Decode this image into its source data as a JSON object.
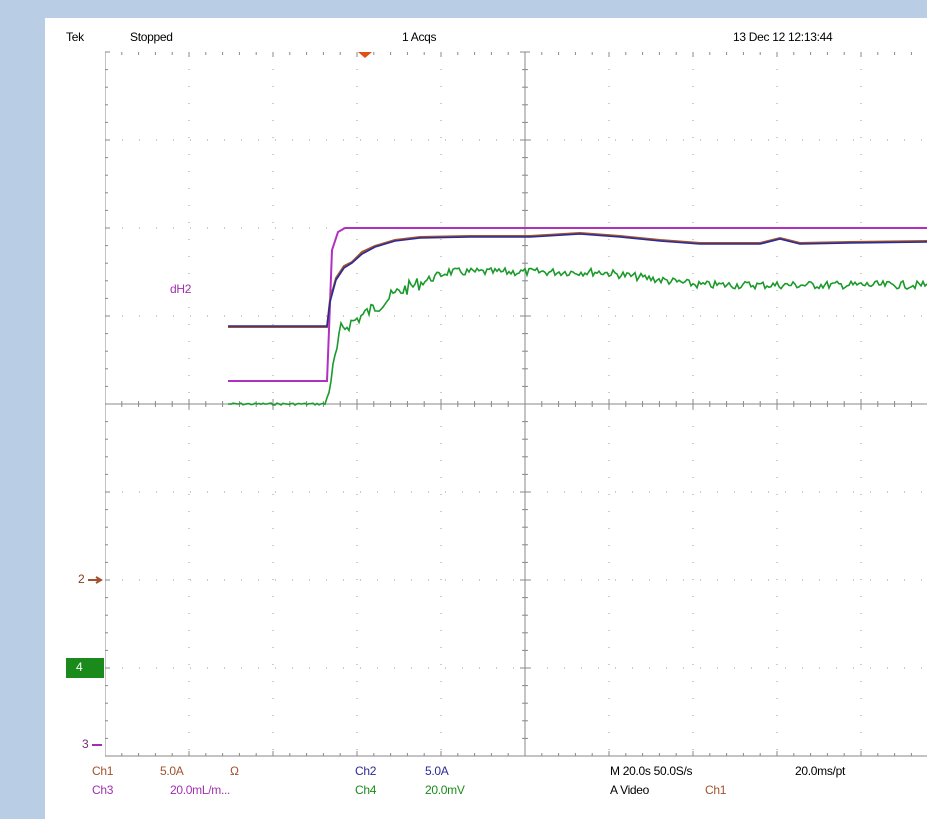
{
  "header": {
    "brand": "Tek",
    "status": "Stopped",
    "acquisitions": "1 Acqs",
    "timestamp": "13 Dec 12 12:13:44"
  },
  "cursor_label": "dH2",
  "channel_markers": [
    "2",
    "4",
    "3"
  ],
  "footer": {
    "row1": {
      "ch1": "Ch1",
      "ch1_scale": "5.0A",
      "ch1_coupling": "Ω",
      "ch2": "Ch2",
      "ch2_scale": "5.0A",
      "timebase": "M 20.0s 50.0S/s",
      "record": "20.0ms/pt"
    },
    "row2": {
      "ch3": "Ch3",
      "ch3_scale": "20.0mL/m...",
      "ch4": "Ch4",
      "ch4_scale": "20.0mV",
      "trigger": "A Video",
      "trigger_source": "Ch1"
    }
  }
}
